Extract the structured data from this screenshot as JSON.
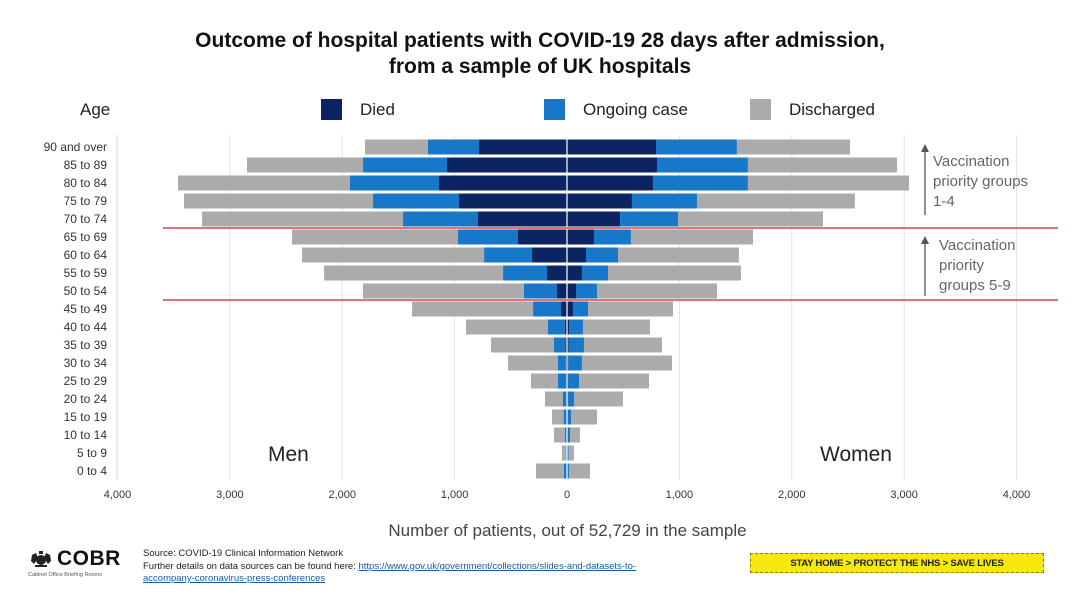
{
  "page": {
    "title_line1": "Outcome of hospital patients with COVID-19 28 days after admission,",
    "title_line2": "from a sample of UK hospitals",
    "age_heading": "Age",
    "men_label": "Men",
    "women_label": "Women",
    "annotation_top": [
      "Vaccination",
      "priority groups",
      "1-4"
    ],
    "annotation_bottom": [
      "Vaccination",
      "priority",
      "groups 5-9"
    ],
    "footer": {
      "logo_text": "COBR",
      "logo_subtitle": "Cabinet Office Briefing Rooms",
      "source": "Source: COVID-19 Clinical Information Network",
      "further_details": "Further details on data sources can be found here: ",
      "link_text": "https://www.gov.uk/government/collections/slides-and-datasets-to-accompany-coronavirus-press-conferences",
      "link_line1": "https://www.gov.uk/government/collections/slides-and-datasets-to-",
      "link_line2": "accompany-coronavirus-press-conferences",
      "banner": "STAY HOME > PROTECT THE NHS > SAVE LIVES"
    }
  },
  "chart_data": {
    "type": "bar",
    "orientation": "horizontal",
    "subtype": "population pyramid (stacked, diverging)",
    "title": "Outcome of hospital patients with COVID-19 28 days after admission, from a sample of UK hospitals",
    "xlabel": "Number of patients, out of 52,729 in the sample",
    "ylabel": "Age",
    "xlim": [
      -4000,
      4000
    ],
    "xticks": [
      -4000,
      -3000,
      -2000,
      -1000,
      0,
      1000,
      2000,
      3000,
      4000
    ],
    "xtick_labels": [
      "4,000",
      "3,000",
      "2,000",
      "1,000",
      "0",
      "1,000",
      "2,000",
      "3,000",
      "4,000"
    ],
    "grid": "vertical",
    "legend": {
      "position": "top",
      "entries": [
        "Died",
        "Ongoing case",
        "Discharged"
      ]
    },
    "colors": {
      "Died": "#0c2461",
      "Ongoing case": "#1777c9",
      "Discharged": "#ababab",
      "threshold_line": "#d9444a"
    },
    "categories": [
      "90 and over",
      "85 to 89",
      "80 to 84",
      "75 to 79",
      "70 to 74",
      "65 to 69",
      "60 to 64",
      "55 to 59",
      "50 to 54",
      "45 to 49",
      "40 to 44",
      "35 to 39",
      "30 to 34",
      "25 to 29",
      "20 to 24",
      "15 to 19",
      "10 to 14",
      "5 to 9",
      "0 to 4"
    ],
    "series": [
      {
        "name": "Died",
        "group": "Men",
        "values": [
          783,
          1068,
          1139,
          961,
          792,
          436,
          311,
          178,
          89,
          53,
          20,
          15,
          10,
          8,
          4,
          3,
          2,
          1,
          2
        ]
      },
      {
        "name": "Ongoing case",
        "group": "Men",
        "values": [
          454,
          747,
          792,
          765,
          667,
          534,
          427,
          391,
          294,
          249,
          149,
          101,
          70,
          72,
          32,
          27,
          18,
          7,
          25
        ]
      },
      {
        "name": "Discharged",
        "group": "Men",
        "values": [
          560,
          1032,
          1530,
          1682,
          1788,
          1477,
          1620,
          1593,
          1432,
          1077,
          730,
          560,
          445,
          240,
          160,
          103,
          96,
          37,
          249
        ]
      },
      {
        "name": "Died",
        "group": "Women",
        "values": [
          792,
          801,
          765,
          578,
          472,
          240,
          169,
          133,
          80,
          53,
          20,
          15,
          10,
          8,
          4,
          3,
          2,
          1,
          1
        ]
      },
      {
        "name": "Ongoing case",
        "group": "Women",
        "values": [
          720,
          809,
          845,
          579,
          516,
          329,
          285,
          232,
          187,
          134,
          122,
          136,
          123,
          99,
          58,
          33,
          25,
          14,
          17
        ]
      },
      {
        "name": "Discharged",
        "group": "Women",
        "values": [
          1006,
          1326,
          1433,
          1405,
          1290,
          1086,
          1076,
          1183,
          1068,
          756,
          596,
          694,
          801,
          623,
          436,
          231,
          89,
          47,
          187
        ]
      }
    ],
    "annotations": [
      {
        "text": "Vaccination priority groups 1-4",
        "spans": [
          "90 and over",
          "70 to 74"
        ]
      },
      {
        "text": "Vaccination priority groups 5-9",
        "spans": [
          "65 to 69",
          "50 to 54"
        ]
      }
    ],
    "threshold_lines_between": [
      [
        "70 to 74",
        "65 to 69"
      ],
      [
        "50 to 54",
        "45 to 49"
      ]
    ]
  }
}
